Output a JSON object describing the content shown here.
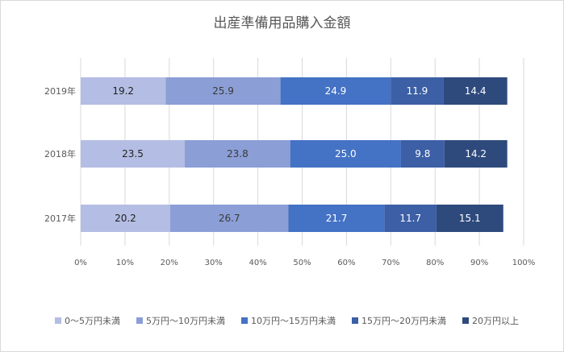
{
  "chart_data": {
    "type": "bar",
    "orientation": "horizontal",
    "stacked": "percent",
    "title": "出産準備用品購入金額",
    "categories": [
      "2019年",
      "2018年",
      "2017年"
    ],
    "series": [
      {
        "name": "0～5万円未満",
        "values": [
          19.2,
          23.5,
          20.2
        ],
        "color": "#b4bde3",
        "label_color": "#222222"
      },
      {
        "name": "5万円～10万円未満",
        "values": [
          25.9,
          23.8,
          26.7
        ],
        "color": "#8b9ed6",
        "label_color": "#3a3a3a"
      },
      {
        "name": "10万円～15万円未満",
        "values": [
          24.9,
          25.0,
          21.7
        ],
        "color": "#4472c4",
        "label_color": "#ffffff"
      },
      {
        "name": "15万円～20万円未満",
        "values": [
          11.9,
          9.8,
          11.7
        ],
        "color": "#3c5fa5",
        "label_color": "#ffffff"
      },
      {
        "name": "20万円以上",
        "values": [
          14.4,
          14.2,
          15.1
        ],
        "color": "#2e4a7d",
        "label_color": "#ffffff"
      }
    ],
    "xlim": [
      0,
      100
    ],
    "xticks": [
      "0%",
      "10%",
      "20%",
      "30%",
      "40%",
      "50%",
      "60%",
      "70%",
      "80%",
      "90%",
      "100%"
    ],
    "grid": true,
    "legend": "bottom"
  }
}
